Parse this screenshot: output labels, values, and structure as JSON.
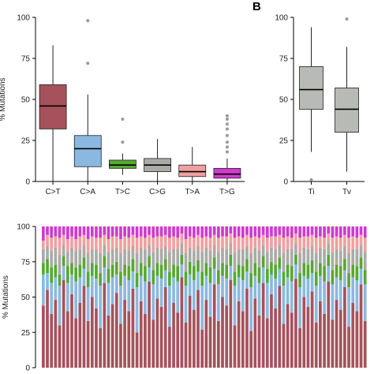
{
  "figure": {
    "panel_b_label": "B"
  },
  "colors": {
    "C>T": "#a5525c",
    "C>A": "#8bb8e0",
    "T>C": "#57a832",
    "T>G": "#cf3bcf",
    "T>A": "#f1a0a0",
    "C>G": "#a8aba7",
    "Ti": "#b8bab6",
    "Tv": "#b8bab6"
  },
  "chart_data": [
    {
      "id": "A",
      "type": "box",
      "ylabel": "% Mutations",
      "ylim": [
        0,
        100
      ],
      "yticks": [
        "0",
        "25",
        "50",
        "75",
        "100"
      ],
      "categories": [
        "C>T",
        "C>A",
        "T>C",
        "C>G",
        "T>A",
        "T>G"
      ],
      "boxes": [
        {
          "category": "C>T",
          "min": 0,
          "q1": 32,
          "median": 46,
          "q3": 59,
          "max": 83,
          "outliers": []
        },
        {
          "category": "C>A",
          "min": 0,
          "q1": 9,
          "median": 20,
          "q3": 28,
          "max": 53,
          "outliers": [
            72,
            98
          ]
        },
        {
          "category": "T>C",
          "min": 4,
          "q1": 8,
          "median": 10,
          "q3": 13,
          "max": 17,
          "outliers": [
            24,
            38
          ]
        },
        {
          "category": "C>G",
          "min": 0,
          "q1": 6,
          "median": 10,
          "q3": 14,
          "max": 26,
          "outliers": []
        },
        {
          "category": "T>A",
          "min": 0,
          "q1": 3,
          "median": 6,
          "q3": 10,
          "max": 21,
          "outliers": []
        },
        {
          "category": "T>G",
          "min": 0,
          "q1": 2,
          "median": 4.5,
          "q3": 8,
          "max": 14,
          "outliers": [
            18,
            21,
            24,
            28,
            32,
            35,
            38,
            40
          ]
        }
      ]
    },
    {
      "id": "B",
      "type": "box",
      "ylim": [
        0,
        100
      ],
      "yticks": [
        "0",
        "25",
        "50",
        "75",
        "100"
      ],
      "categories": [
        "Ti",
        "Tv"
      ],
      "boxes": [
        {
          "category": "Ti",
          "min": 18,
          "q1": 44,
          "median": 56,
          "q3": 70,
          "max": 94,
          "outliers": [
            1
          ]
        },
        {
          "category": "Tv",
          "min": 6,
          "q1": 30,
          "median": 44,
          "q3": 57,
          "max": 82,
          "outliers": [
            99
          ]
        }
      ]
    },
    {
      "id": "C",
      "type": "stacked-bar",
      "ylabel": "% Mutations",
      "ylim": [
        0,
        100
      ],
      "yticks": [
        "0",
        "25",
        "50",
        "75",
        "100"
      ],
      "stack_order": [
        "C>T",
        "C>A",
        "T>C",
        "C>G",
        "T>A",
        "T>G"
      ],
      "samples": [
        [
          44,
          22,
          8,
          10,
          6,
          10
        ],
        [
          55,
          12,
          10,
          9,
          8,
          6
        ],
        [
          38,
          22,
          11,
          12,
          9,
          8
        ],
        [
          48,
          16,
          9,
          12,
          8,
          7
        ],
        [
          30,
          28,
          8,
          14,
          12,
          8
        ],
        [
          62,
          10,
          7,
          8,
          7,
          6
        ],
        [
          40,
          20,
          12,
          10,
          9,
          9
        ],
        [
          52,
          14,
          8,
          11,
          8,
          7
        ],
        [
          35,
          26,
          10,
          12,
          8,
          9
        ],
        [
          46,
          18,
          9,
          11,
          9,
          7
        ],
        [
          58,
          12,
          8,
          9,
          7,
          6
        ],
        [
          33,
          24,
          11,
          13,
          10,
          9
        ],
        [
          50,
          15,
          9,
          10,
          9,
          7
        ],
        [
          42,
          21,
          10,
          11,
          8,
          8
        ],
        [
          28,
          30,
          9,
          14,
          11,
          8
        ],
        [
          60,
          11,
          8,
          8,
          7,
          6
        ],
        [
          37,
          23,
          10,
          12,
          9,
          9
        ],
        [
          45,
          19,
          9,
          11,
          9,
          7
        ],
        [
          53,
          13,
          9,
          10,
          8,
          7
        ],
        [
          31,
          27,
          10,
          13,
          10,
          9
        ],
        [
          48,
          17,
          8,
          11,
          9,
          7
        ],
        [
          40,
          22,
          10,
          11,
          9,
          8
        ],
        [
          56,
          12,
          9,
          9,
          8,
          6
        ],
        [
          25,
          32,
          10,
          14,
          11,
          8
        ],
        [
          47,
          18,
          9,
          11,
          8,
          7
        ],
        [
          38,
          23,
          11,
          12,
          8,
          8
        ],
        [
          61,
          10,
          8,
          8,
          7,
          6
        ],
        [
          34,
          25,
          10,
          13,
          10,
          8
        ],
        [
          49,
          16,
          9,
          11,
          8,
          7
        ],
        [
          43,
          20,
          10,
          11,
          9,
          7
        ],
        [
          57,
          12,
          8,
          9,
          8,
          6
        ],
        [
          29,
          29,
          10,
          14,
          10,
          8
        ],
        [
          46,
          18,
          9,
          11,
          9,
          7
        ],
        [
          39,
          22,
          11,
          12,
          8,
          8
        ],
        [
          64,
          9,
          7,
          8,
          7,
          5
        ],
        [
          32,
          26,
          10,
          13,
          10,
          9
        ],
        [
          51,
          15,
          9,
          10,
          8,
          7
        ],
        [
          41,
          21,
          10,
          11,
          9,
          8
        ],
        [
          55,
          13,
          8,
          10,
          8,
          6
        ],
        [
          27,
          31,
          10,
          14,
          10,
          8
        ],
        [
          48,
          17,
          9,
          11,
          8,
          7
        ],
        [
          36,
          24,
          11,
          12,
          9,
          8
        ],
        [
          59,
          11,
          8,
          9,
          7,
          6
        ],
        [
          33,
          26,
          10,
          13,
          10,
          8
        ],
        [
          50,
          15,
          9,
          11,
          8,
          7
        ],
        [
          44,
          19,
          10,
          11,
          9,
          7
        ],
        [
          62,
          10,
          8,
          8,
          7,
          5
        ],
        [
          30,
          28,
          10,
          13,
          11,
          8
        ],
        [
          47,
          17,
          9,
          11,
          9,
          7
        ],
        [
          40,
          22,
          10,
          12,
          8,
          8
        ],
        [
          56,
          12,
          9,
          9,
          8,
          6
        ],
        [
          26,
          31,
          10,
          14,
          11,
          8
        ],
        [
          49,
          16,
          9,
          11,
          8,
          7
        ],
        [
          37,
          23,
          11,
          12,
          9,
          8
        ],
        [
          60,
          11,
          8,
          8,
          7,
          6
        ],
        [
          35,
          25,
          10,
          12,
          10,
          8
        ],
        [
          52,
          14,
          9,
          10,
          8,
          7
        ],
        [
          42,
          21,
          10,
          11,
          9,
          7
        ],
        [
          58,
          12,
          8,
          9,
          7,
          6
        ],
        [
          31,
          27,
          10,
          13,
          11,
          8
        ],
        [
          45,
          19,
          9,
          11,
          9,
          7
        ],
        [
          39,
          22,
          11,
          12,
          8,
          8
        ],
        [
          63,
          10,
          7,
          8,
          7,
          5
        ],
        [
          28,
          29,
          10,
          14,
          11,
          8
        ],
        [
          50,
          15,
          9,
          11,
          8,
          7
        ],
        [
          43,
          20,
          10,
          11,
          9,
          7
        ],
        [
          54,
          13,
          9,
          10,
          8,
          6
        ],
        [
          32,
          26,
          10,
          13,
          11,
          8
        ],
        [
          47,
          18,
          9,
          11,
          8,
          7
        ],
        [
          38,
          23,
          11,
          12,
          8,
          8
        ],
        [
          61,
          11,
          8,
          8,
          7,
          5
        ],
        [
          34,
          25,
          10,
          13,
          10,
          8
        ],
        [
          48,
          16,
          9,
          11,
          9,
          7
        ],
        [
          41,
          21,
          10,
          11,
          9,
          8
        ],
        [
          57,
          12,
          8,
          9,
          8,
          6
        ],
        [
          29,
          28,
          10,
          14,
          11,
          8
        ],
        [
          46,
          18,
          9,
          11,
          9,
          7
        ],
        [
          40,
          22,
          10,
          12,
          8,
          8
        ],
        [
          59,
          11,
          8,
          9,
          7,
          6
        ],
        [
          33,
          26,
          10,
          13,
          10,
          8
        ]
      ]
    }
  ]
}
